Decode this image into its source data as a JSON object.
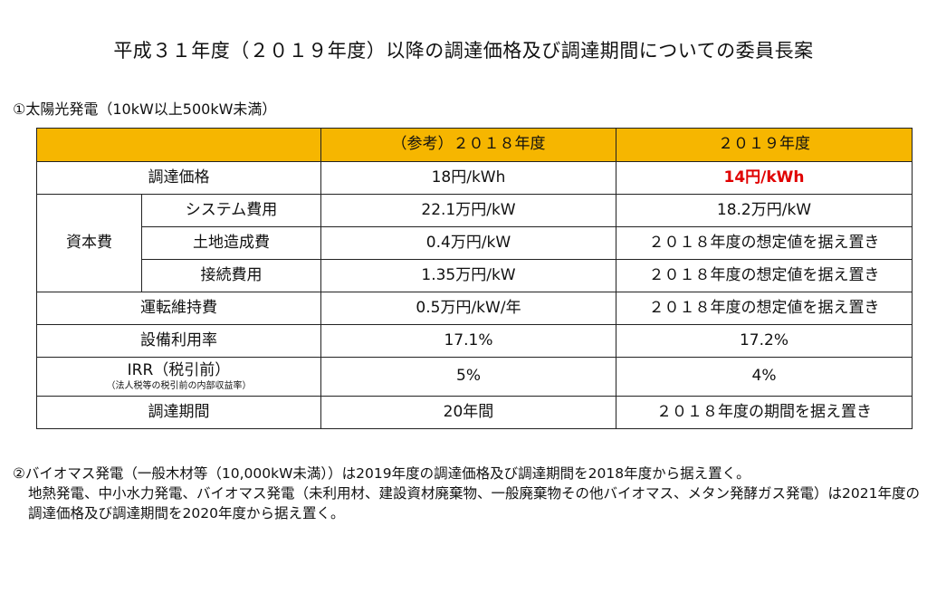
{
  "title": "平成３１年度（２０１９年度）以降の調達価格及び調達期間についての委員長案",
  "section1": "①太陽光発電（10kW以上500kW未満）",
  "table": {
    "headers": [
      "",
      "（参考）２０１８年度",
      "２０１９年度"
    ],
    "rows": {
      "price": {
        "label": "調達価格",
        "y2018": "18円/kWh",
        "y2019": "14円/kWh"
      },
      "capex_group": "資本費",
      "system": {
        "label": "システム費用",
        "y2018": "22.1万円/kW",
        "y2019": "18.2万円/kW"
      },
      "land": {
        "label": "土地造成費",
        "y2018": "0.4万円/kW",
        "y2019": "２０１８年度の想定値を据え置き"
      },
      "connection": {
        "label": "接続費用",
        "y2018": "1.35万円/kW",
        "y2019": "２０１８年度の想定値を据え置き"
      },
      "om": {
        "label": "運転維持費",
        "y2018": "0.5万円/kW/年",
        "y2019": "２０１８年度の想定値を据え置き"
      },
      "capacity": {
        "label": "設備利用率",
        "y2018": "17.1%",
        "y2019": "17.2%"
      },
      "irr": {
        "label": "IRR（税引前）",
        "sublabel": "（法人税等の税引前の内部収益率）",
        "y2018": "5%",
        "y2019": "4%"
      },
      "period": {
        "label": "調達期間",
        "y2018": "20年間",
        "y2019": "２０１８年度の期間を据え置き"
      }
    }
  },
  "note": {
    "line1": "②バイオマス発電（一般木材等（10,000kW未満））は2019年度の調達価格及び調達期間を2018年度から据え置く。",
    "line2": "地熱発電、中小水力発電、バイオマス発電（未利用材、建設資材廃棄物、一般廃棄物その他バイオマス、メタン発酵ガス発電）は2021年度の調達価格及び調達期間を2020年度から据え置く。"
  },
  "colors": {
    "header_bg": "#f6b600",
    "highlight": "#e00000"
  }
}
